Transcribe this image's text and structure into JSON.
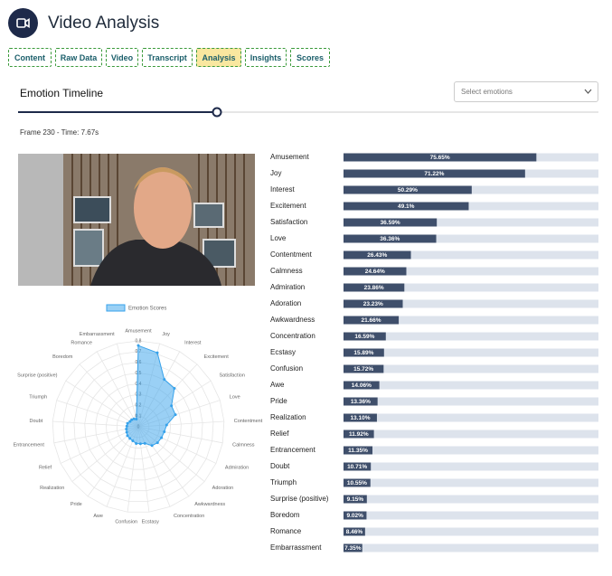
{
  "header": {
    "title": "Video Analysis"
  },
  "tabs": [
    "Content",
    "Raw Data",
    "Video",
    "Transcript",
    "Analysis",
    "Insights",
    "Scores"
  ],
  "active_tab": "Analysis",
  "timeline": {
    "title": "Emotion Timeline",
    "select_placeholder": "Select emotions",
    "frame_info": "Frame 230 - Time: 7.67s"
  },
  "chart_data": [
    {
      "type": "radar",
      "legend": "Emotion Scores",
      "color": "#36a2eb",
      "categories": [
        "Amusement",
        "Joy",
        "Interest",
        "Excitement",
        "Satisfaction",
        "Love",
        "Contentment",
        "Calmness",
        "Admiration",
        "Adoration",
        "Awkwardness",
        "Concentration",
        "Ecstasy",
        "Confusion",
        "Awe",
        "Pride",
        "Realization",
        "Relief",
        "Entrancement",
        "Doubt",
        "Triumph",
        "Surprise (positive)",
        "Boredom",
        "Romance",
        "Embarrassment"
      ],
      "values": [
        0.7565,
        0.7122,
        0.5029,
        0.491,
        0.3659,
        0.3636,
        0.2643,
        0.2464,
        0.2386,
        0.2323,
        0.2166,
        0.1659,
        0.1589,
        0.1572,
        0.1406,
        0.1336,
        0.131,
        0.1192,
        0.1135,
        0.1071,
        0.1055,
        0.0915,
        0.0902,
        0.0846,
        0.0735
      ],
      "rlim": [
        0,
        0.8
      ],
      "rticks": [
        0,
        0.1,
        0.2,
        0.3,
        0.4,
        0.5,
        0.6,
        0.7,
        0.8
      ]
    },
    {
      "type": "hbar",
      "color": "#3f4f6b",
      "track_color": "#dde3ec",
      "categories": [
        "Amusement",
        "Joy",
        "Interest",
        "Excitement",
        "Satisfaction",
        "Love",
        "Contentment",
        "Calmness",
        "Admiration",
        "Adoration",
        "Awkwardness",
        "Concentration",
        "Ecstasy",
        "Confusion",
        "Awe",
        "Pride",
        "Realization",
        "Relief",
        "Entrancement",
        "Doubt",
        "Triumph",
        "Surprise (positive)",
        "Boredom",
        "Romance",
        "Embarrassment"
      ],
      "values": [
        75.65,
        71.22,
        50.29,
        49.1,
        36.59,
        36.36,
        26.43,
        24.64,
        23.86,
        23.23,
        21.66,
        16.59,
        15.89,
        15.72,
        14.06,
        13.36,
        13.1,
        11.92,
        11.35,
        10.71,
        10.55,
        9.15,
        9.02,
        8.46,
        7.35
      ],
      "value_labels": [
        "75.65%",
        "71.22%",
        "50.29%",
        "49.1%",
        "36.59%",
        "36.36%",
        "26.43%",
        "24.64%",
        "23.86%",
        "23.23%",
        "21.66%",
        "16.59%",
        "15.89%",
        "15.72%",
        "14.06%",
        "13.36%",
        "13.10%",
        "11.92%",
        "11.35%",
        "10.71%",
        "10.55%",
        "9.15%",
        "9.02%",
        "8.46%",
        "7.35%"
      ],
      "xlim": [
        0,
        100
      ]
    }
  ]
}
